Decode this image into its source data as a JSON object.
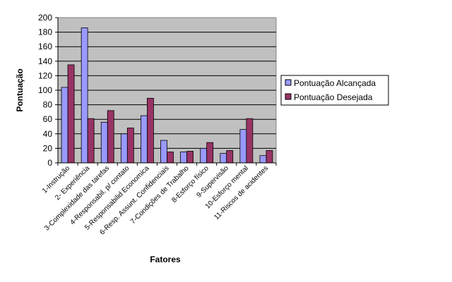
{
  "chart_data": {
    "type": "bar",
    "xlabel": "Fatores",
    "ylabel": "Pontuação",
    "ylim": [
      0,
      200
    ],
    "ytick_step": 20,
    "grid": true,
    "legend_position": "right",
    "plot_background": "#C0C0C0",
    "categories": [
      "1-Instrução",
      "2- Experiência",
      "3-Complexidade das tarefas",
      "4-Responsabil. p/ contato",
      "5-Responsabilid Economica",
      "6-Resp. Assunt. Confidenciais",
      "7-Condições de Trabalho",
      "8-Esforço físico",
      "9-Supervisão",
      "10-Esforço mental",
      "11-Riscos de acidentes"
    ],
    "series": [
      {
        "name": "Pontuação Alcançada",
        "color": "#9999FF",
        "values": [
          104,
          186,
          56,
          40,
          65,
          31,
          15,
          20,
          13,
          46,
          10
        ]
      },
      {
        "name": "Pontuação Desejada",
        "color": "#993366",
        "values": [
          135,
          61,
          72,
          48,
          89,
          15,
          16,
          28,
          17,
          61,
          17
        ]
      }
    ]
  }
}
